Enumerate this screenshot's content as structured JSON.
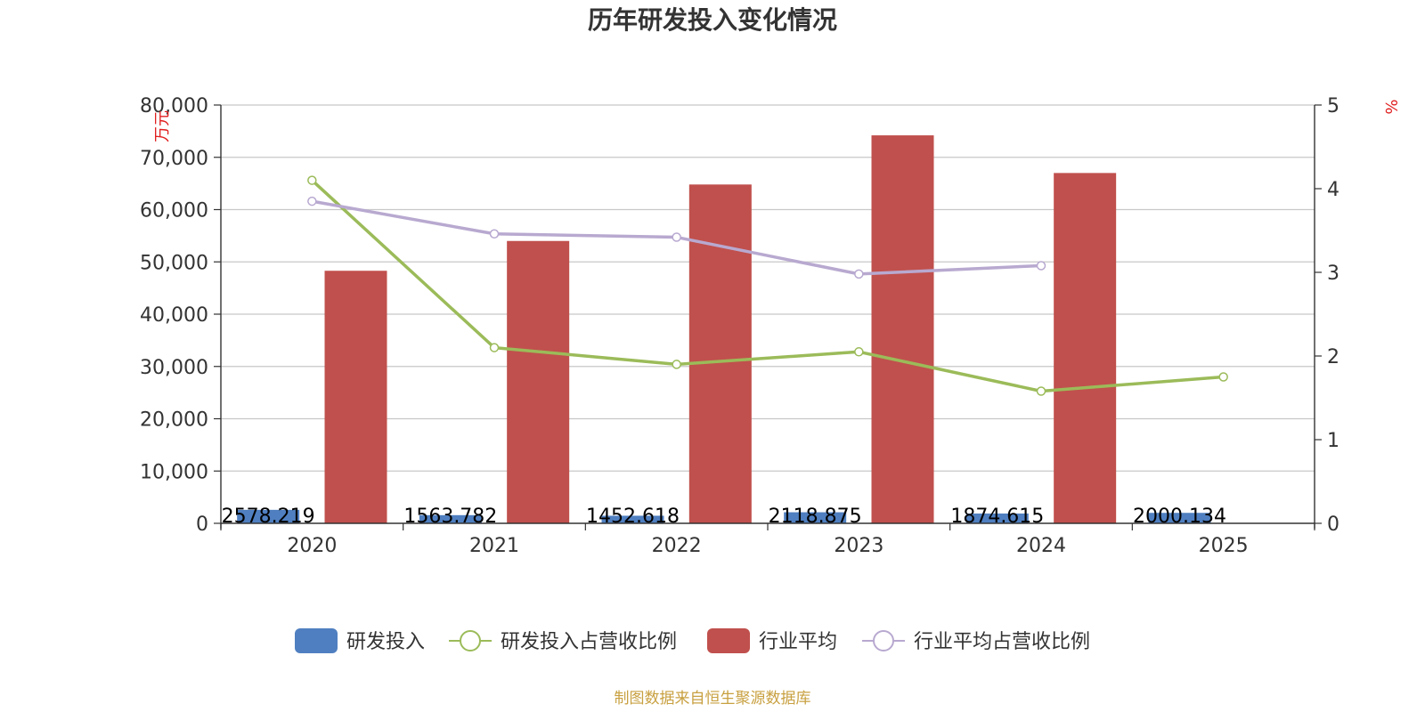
{
  "chart_data": {
    "type": "bar",
    "title": "历年研发投入变化情况",
    "categories": [
      "2020",
      "2021",
      "2022",
      "2023",
      "2024",
      "2025"
    ],
    "y_left": {
      "unit": "万元",
      "ylim": [
        0,
        80000
      ],
      "ticks": [
        "0",
        "10,000",
        "20,000",
        "30,000",
        "40,000",
        "50,000",
        "60,000",
        "70,000",
        "80,000"
      ]
    },
    "y_right": {
      "unit": "%",
      "ylim": [
        0,
        5
      ],
      "ticks": [
        "0",
        "1",
        "2",
        "3",
        "4",
        "5"
      ]
    },
    "series": [
      {
        "name": "研发投入",
        "kind": "bar",
        "axis": "left",
        "color": "#4f7fc0",
        "values": [
          2578.219,
          1563.782,
          1452.618,
          2118.875,
          1874.615,
          2000.134
        ],
        "labels": [
          "2578.219",
          "1563.782",
          "1452.618",
          "2118.875",
          "1874.615",
          "2000.134"
        ]
      },
      {
        "name": "研发投入占营收比例",
        "kind": "line",
        "axis": "right",
        "color": "#9bbb59",
        "values": [
          4.1,
          2.1,
          1.9,
          2.05,
          1.58,
          1.75
        ]
      },
      {
        "name": "行业平均",
        "kind": "bar",
        "axis": "left",
        "color": "#c0504d",
        "values": [
          48300,
          54000,
          64800,
          74200,
          67000,
          null
        ]
      },
      {
        "name": "行业平均占营收比例",
        "kind": "line",
        "axis": "right",
        "color": "#b8a9d0",
        "values": [
          3.85,
          3.46,
          3.42,
          2.98,
          3.08,
          null
        ]
      }
    ],
    "grid": true,
    "legend_position": "bottom"
  },
  "source_text": "制图数据来自恒生聚源数据库"
}
